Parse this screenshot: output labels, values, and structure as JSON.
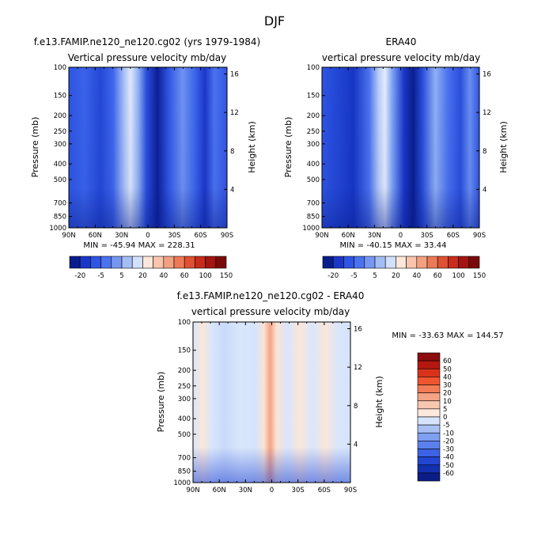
{
  "figure_title": "DJF",
  "chart_data": [
    {
      "type": "heatmap",
      "title": "f.e13.FAMIP.ne120_ne120.cg02 (yrs 1979-1984)",
      "subtitle": "Vertical pressure velocity  mb/day",
      "xlabel": "",
      "ylabel": "Pressure (mb)",
      "y2label": "Height (km)",
      "x_ticks": [
        "90N",
        "60N",
        "30N",
        "0",
        "30S",
        "60S",
        "90S"
      ],
      "y_ticks": [
        "100",
        "150",
        "200",
        "250",
        "300",
        "400",
        "500",
        "700",
        "850",
        "1000"
      ],
      "y2_ticks": [
        "16",
        "12",
        "8",
        "4"
      ],
      "ylim": [
        1000,
        100
      ],
      "min_label": "MIN = -45.94   MAX = 228.31",
      "min": -45.94,
      "max": 228.31
    },
    {
      "type": "heatmap",
      "title": "ERA40",
      "subtitle": "vertical pressure velocity  mb/day",
      "xlabel": "",
      "ylabel": "Pressure (mb)",
      "y2label": "Height (km)",
      "x_ticks": [
        "90N",
        "60N",
        "30N",
        "0",
        "30S",
        "60S",
        "90S"
      ],
      "y_ticks": [
        "100",
        "150",
        "200",
        "250",
        "300",
        "400",
        "500",
        "700",
        "850",
        "1000"
      ],
      "y2_ticks": [
        "16",
        "12",
        "8",
        "4"
      ],
      "ylim": [
        1000,
        100
      ],
      "min_label": "MIN = -40.15   MAX = 33.44",
      "min": -40.15,
      "max": 33.44
    },
    {
      "type": "heatmap",
      "title": "f.e13.FAMIP.ne120_ne120.cg02 - ERA40",
      "subtitle": "vertical pressure velocity  mb/day",
      "xlabel": "",
      "ylabel": "Pressure (mb)",
      "y2label": "Height (km)",
      "x_ticks": [
        "90N",
        "60N",
        "30N",
        "0",
        "30S",
        "60S",
        "90S"
      ],
      "y_ticks": [
        "100",
        "150",
        "200",
        "250",
        "300",
        "400",
        "500",
        "700",
        "850",
        "1000"
      ],
      "y2_ticks": [
        "16",
        "12",
        "8",
        "4"
      ],
      "ylim": [
        1000,
        100
      ],
      "min_label": "MIN = -33.63   MAX = 144.57",
      "min": -33.63,
      "max": 144.57
    }
  ],
  "colorbar_top": {
    "labels": [
      "-20",
      "-5",
      "5",
      "20",
      "40",
      "60",
      "100",
      "150"
    ],
    "colors": [
      "#0a1d8c",
      "#1b37c8",
      "#2f55e3",
      "#4b72ee",
      "#7597f2",
      "#a5bdf5",
      "#d2e0fb",
      "#fde7da",
      "#f9c5ad",
      "#f3a081",
      "#ec7a57",
      "#df5133",
      "#c72c1d",
      "#a31510",
      "#7a0a0a"
    ]
  },
  "colorbar_diff": {
    "labels": [
      "60",
      "50",
      "40",
      "30",
      "20",
      "10",
      "5",
      "0",
      "-5",
      "-10",
      "-20",
      "-30",
      "-40",
      "-50",
      "-60"
    ],
    "colors": [
      "#8c0d0d",
      "#b3170f",
      "#d9321c",
      "#ee5530",
      "#f27c55",
      "#f4a385",
      "#f8c7b0",
      "#fde8dc",
      "#d6e4fb",
      "#a9c0f5",
      "#7f9ff2",
      "#5a80ee",
      "#3c62e6",
      "#2245d2",
      "#1430b0",
      "#0b1c86"
    ]
  }
}
